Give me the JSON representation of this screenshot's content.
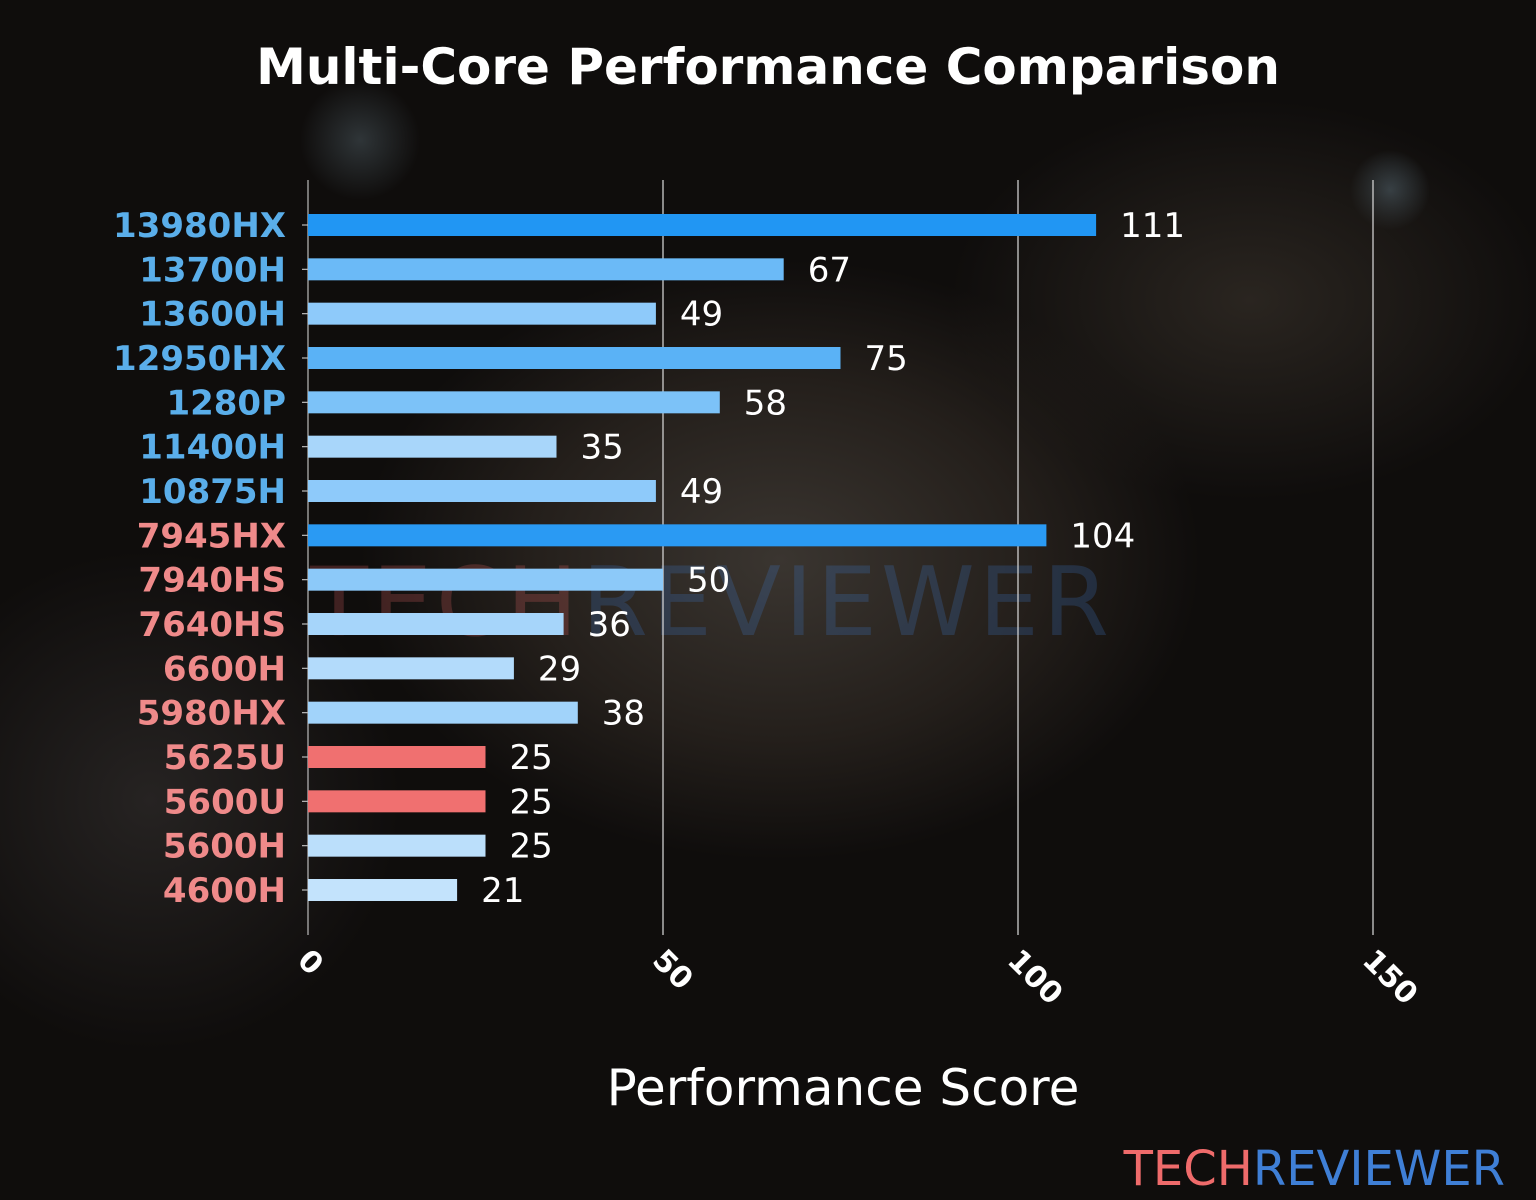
{
  "chart_data": {
    "type": "bar",
    "orientation": "horizontal",
    "title": "Multi-Core Performance Comparison",
    "xlabel": "Performance Score",
    "ylabel": "",
    "xlim": [
      0,
      150
    ],
    "xticks": [
      0,
      50,
      100,
      150
    ],
    "grid": "vertical",
    "categories": [
      "13980HX",
      "13700H",
      "13600H",
      "12950HX",
      "1280P",
      "11400H",
      "10875H",
      "7945HX",
      "7940HS",
      "7640HS",
      "6600H",
      "5980HX",
      "5625U",
      "5600U",
      "5600H",
      "4600H"
    ],
    "values": [
      111,
      67,
      49,
      75,
      58,
      35,
      49,
      104,
      50,
      36,
      29,
      38,
      25,
      25,
      25,
      21
    ],
    "bar_colors": [
      "#2196f3",
      "#6bbaf7",
      "#8ecafa",
      "#5ab2f6",
      "#7cc2f8",
      "#a8d6fa",
      "#8ecafa",
      "#2a9af3",
      "#8cc9f9",
      "#a6d5fa",
      "#b3dbfb",
      "#a1d3fa",
      "#f07070",
      "#f07070",
      "#bbdffb",
      "#c3e3fc"
    ],
    "label_colors": [
      "#5aaeea",
      "#5aaeea",
      "#5aaeea",
      "#5aaeea",
      "#5aaeea",
      "#5aaeea",
      "#5aaeea",
      "#ef8a8a",
      "#ef8a8a",
      "#ef8a8a",
      "#ef8a8a",
      "#ef8a8a",
      "#ef8a8a",
      "#ef8a8a",
      "#ef8a8a",
      "#ef8a8a"
    ]
  },
  "watermark": {
    "part1": "TECH",
    "part2": "REVIEWER",
    "color1": "#ef6b6b",
    "color2": "#3f7fd6"
  }
}
